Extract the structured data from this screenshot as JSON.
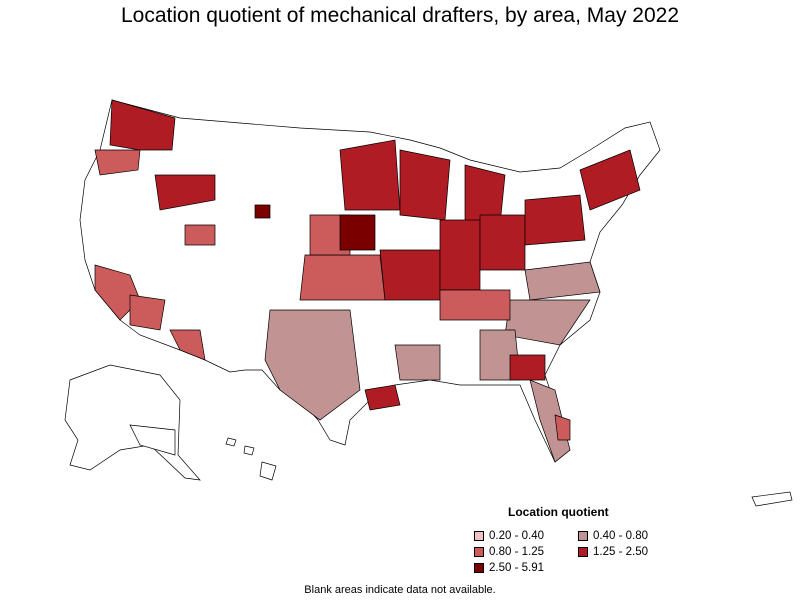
{
  "title": "Location quotient of mechanical drafters, by area, May 2022",
  "legend": {
    "title": "Location quotient",
    "items": [
      {
        "label": "0.20 - 0.40",
        "color": "#f3c3c3"
      },
      {
        "label": "0.40 - 0.80",
        "color": "#c19393"
      },
      {
        "label": "0.80 - 1.25",
        "color": "#cc5b5b"
      },
      {
        "label": "1.25 - 2.50",
        "color": "#b01c24"
      },
      {
        "label": "2.50 - 5.91",
        "color": "#7a0000"
      }
    ]
  },
  "footnote": "Blank areas indicate data not available.",
  "colors": {
    "blank": "#ffffff",
    "border": "#000000"
  }
}
